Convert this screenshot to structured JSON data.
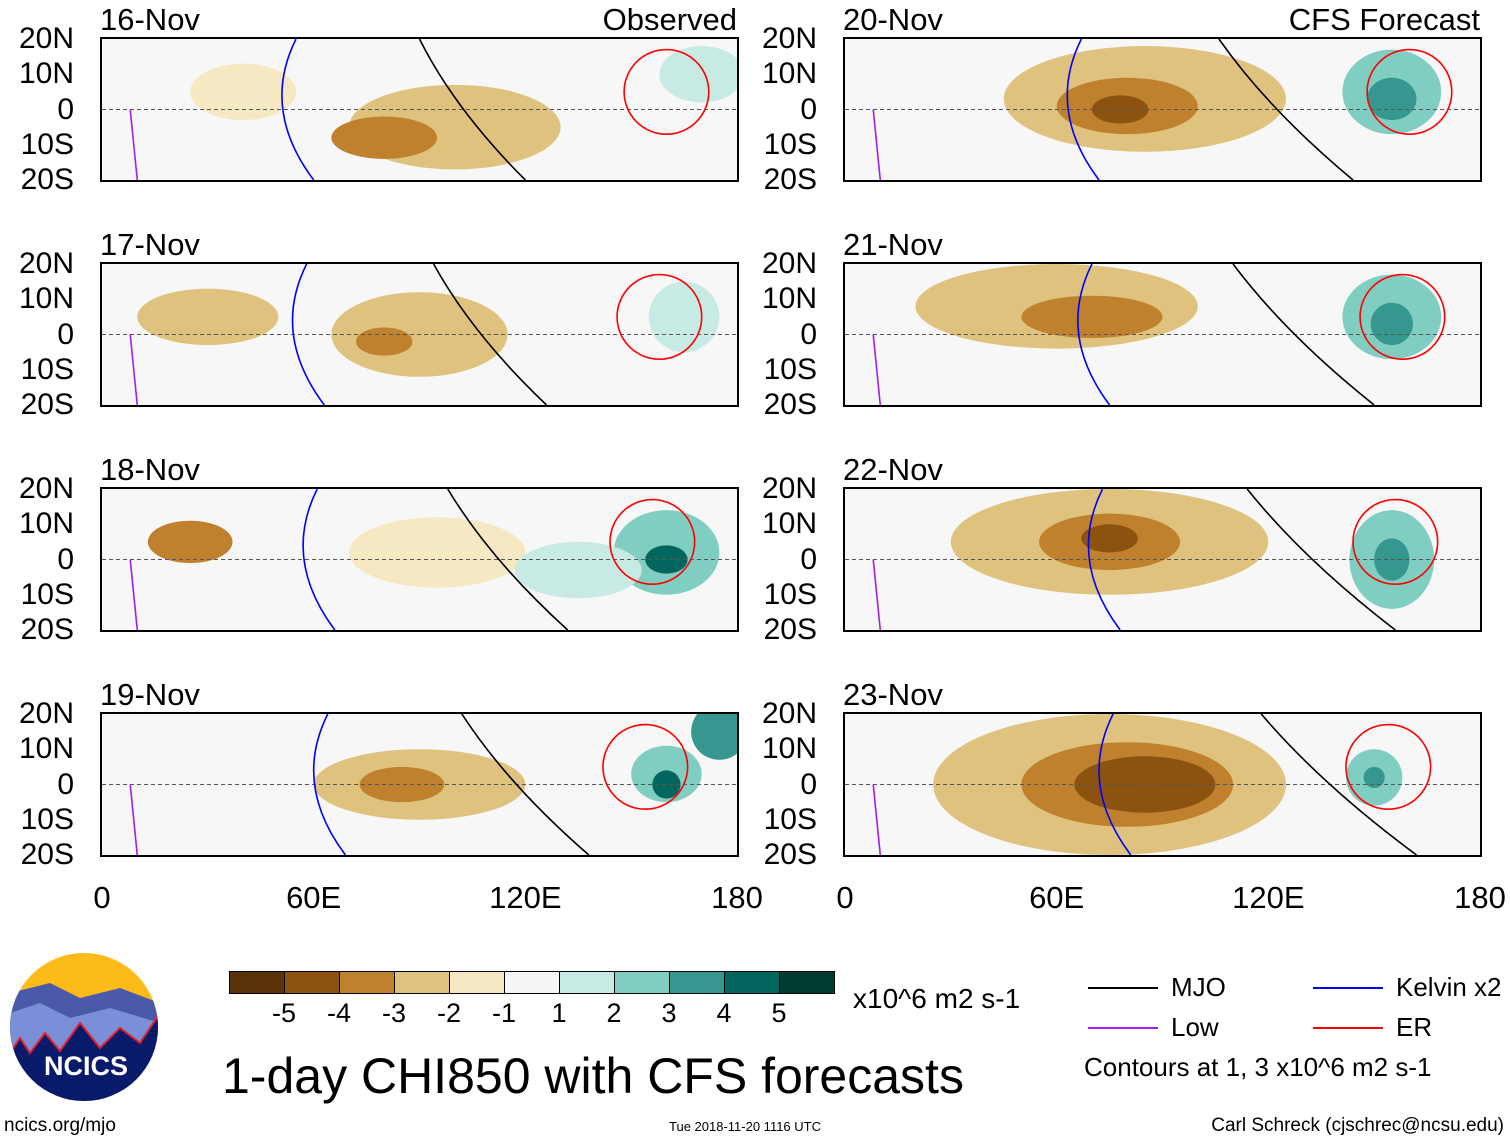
{
  "panels": [
    {
      "date": "16-Nov",
      "tag": "Observed",
      "col": 0,
      "row": 0
    },
    {
      "date": "17-Nov",
      "tag": "",
      "col": 0,
      "row": 1
    },
    {
      "date": "18-Nov",
      "tag": "",
      "col": 0,
      "row": 2
    },
    {
      "date": "19-Nov",
      "tag": "",
      "col": 0,
      "row": 3
    },
    {
      "date": "20-Nov",
      "tag": "CFS Forecast",
      "col": 1,
      "row": 0
    },
    {
      "date": "21-Nov",
      "tag": "",
      "col": 1,
      "row": 1
    },
    {
      "date": "22-Nov",
      "tag": "",
      "col": 1,
      "row": 2
    },
    {
      "date": "23-Nov",
      "tag": "",
      "col": 1,
      "row": 3
    }
  ],
  "lat_labels": [
    "20N",
    "10N",
    "0",
    "10S",
    "20S"
  ],
  "lon_labels": [
    "0",
    "60E",
    "120E",
    "180"
  ],
  "colorbar": {
    "colors": [
      "#5a3408",
      "#8c520f",
      "#bf812d",
      "#dfc27d",
      "#f6e8c3",
      "#f5f5f5",
      "#c7eae5",
      "#80cdc1",
      "#35978f",
      "#01665e",
      "#003c30"
    ],
    "labels": [
      "-5",
      "-4",
      "-3",
      "-2",
      "-1",
      "1",
      "2",
      "3",
      "4",
      "5"
    ],
    "units": "x10^6 m2 s-1"
  },
  "legend": [
    {
      "label": "MJO",
      "color": "#000000"
    },
    {
      "label": "Kelvin x2",
      "color": "#0000ff"
    },
    {
      "label": "Low",
      "color": "#a020f0"
    },
    {
      "label": "ER",
      "color": "#ff0000"
    }
  ],
  "contours_note": "Contours at 1, 3 x10^6 m2 s-1",
  "title": "1-day CHI850 with CFS forecasts",
  "logo_text": "NCICS",
  "footer": {
    "left": "ncics.org/mjo",
    "center": "Tue 2018-11-20 1116 UTC",
    "right": "Carl Schreck (cjschrec@ncsu.edu)"
  }
}
